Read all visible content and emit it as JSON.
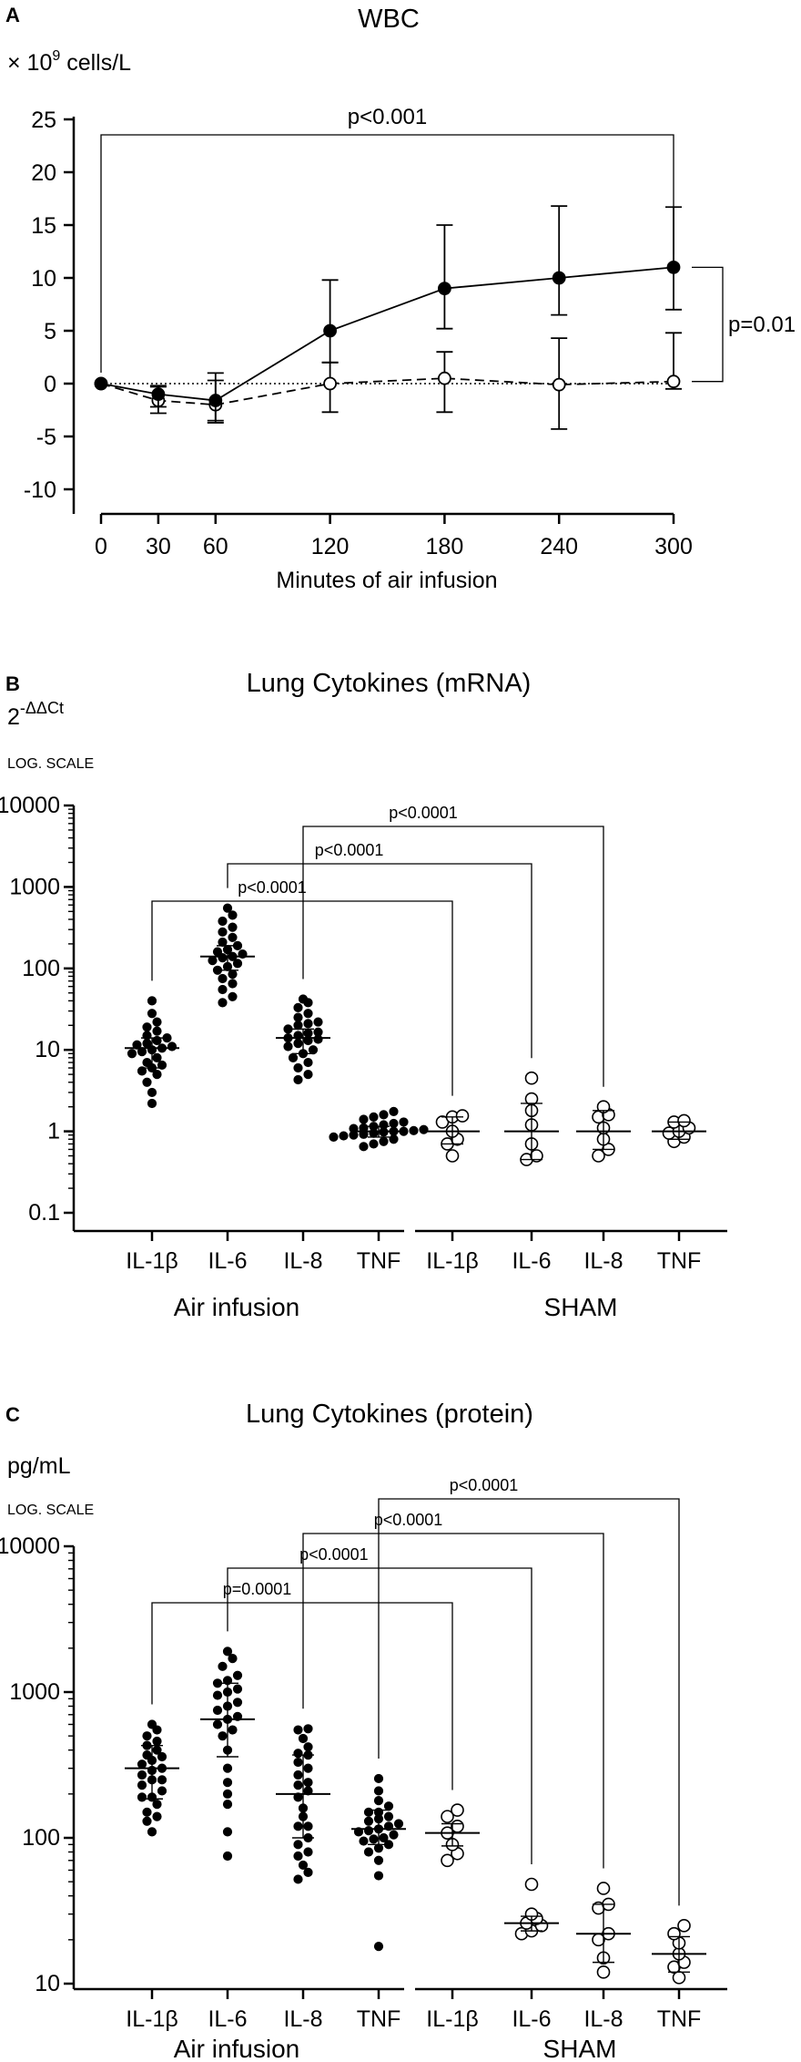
{
  "panels": {
    "A": {
      "letter": "A",
      "title": "WBC",
      "ylabel_prefix": "× 10",
      "ylabel_exp": "9",
      "ylabel_suffix": " cells/L",
      "xlabel": "Minutes of air infusion",
      "bracket_top": "p<0.001",
      "bracket_right": "p=0.01"
    },
    "B": {
      "letter": "B",
      "title": "Lung Cytokines (mRNA)",
      "ylabel_base": "2",
      "ylabel_exp": "-ΔΔCt",
      "scale_note": "LOG. SCALE",
      "group_left": "Air infusion",
      "group_right": "SHAM",
      "brackets": [
        "p<0.0001",
        "p<0.0001",
        "p<0.0001"
      ]
    },
    "C": {
      "letter": "C",
      "title": "Lung Cytokines (protein)",
      "ylabel": "pg/mL",
      "scale_note": "LOG. SCALE",
      "group_left": "Air infusion",
      "group_right": "SHAM",
      "brackets": [
        "p=0.0001",
        "p<0.0001",
        "p<0.0001",
        "p<0.0001"
      ]
    }
  },
  "chart_data": [
    {
      "type": "line",
      "title": "WBC",
      "xlabel": "Minutes of air infusion",
      "ylabel": "× 10^9 cells/L",
      "x": [
        0,
        30,
        60,
        120,
        180,
        240,
        300
      ],
      "x_ticks": [
        "0",
        "30",
        "60",
        "120",
        "180",
        "240",
        "300"
      ],
      "y_ticks": [
        "25",
        "20",
        "15",
        "10",
        "5",
        "0",
        "-5",
        "-10"
      ],
      "ylim": [
        -10,
        25
      ],
      "reference_line": 0,
      "series": [
        {
          "style": "solid line, filled circles",
          "values": [
            0,
            -1,
            -1.6,
            5,
            9,
            10,
            11
          ],
          "err_low": [
            0,
            -2.2,
            -3.5,
            2,
            5.2,
            6.5,
            7
          ],
          "err_high": [
            0,
            -0.2,
            0.3,
            9.8,
            15,
            16.8,
            16.7
          ]
        },
        {
          "style": "dashed line, open circles",
          "values": [
            0,
            -1.6,
            -2,
            0,
            0.5,
            -0.1,
            0.2
          ],
          "err_low": [
            0,
            -2.8,
            -3.7,
            -2.7,
            -2.7,
            -4.3,
            -0.5
          ],
          "err_high": [
            0,
            -0.3,
            1,
            2,
            3,
            4.3,
            4.8
          ]
        }
      ],
      "annotations": [
        "p<0.001",
        "p=0.01"
      ]
    },
    {
      "type": "scatter",
      "title": "Lung Cytokines (mRNA)",
      "ylabel": "2^-ΔΔCt",
      "log_scale": true,
      "ylim": [
        0.1,
        10000
      ],
      "y_ticks": [
        "10000",
        "1000",
        "100",
        "10",
        "1",
        "0.1"
      ],
      "categories": [
        "IL-1β",
        "IL-6",
        "IL-8",
        "TNF",
        "IL-1β",
        "IL-6",
        "IL-8",
        "TNF"
      ],
      "groups": [
        "Air infusion",
        "Air infusion",
        "Air infusion",
        "Air infusion",
        "SHAM",
        "SHAM",
        "SHAM",
        "SHAM"
      ],
      "medians": [
        10.5,
        140,
        14,
        1.0,
        1.0,
        1.0,
        1.0,
        1.0
      ],
      "ranges": [
        [
          6,
          14
        ],
        [
          95,
          190
        ],
        [
          9,
          18
        ],
        [
          0.85,
          1.15
        ],
        [
          0.7,
          1.5
        ],
        [
          0.45,
          2.2
        ],
        [
          0.6,
          1.8
        ],
        [
          0.8,
          1.3
        ]
      ],
      "points": [
        [
          2.2,
          3,
          4,
          5,
          5.5,
          6,
          6.5,
          7,
          8,
          9,
          9.5,
          10,
          10.5,
          11,
          11.5,
          12,
          13,
          14,
          15,
          17,
          19,
          22,
          28,
          40
        ],
        [
          38,
          45,
          55,
          65,
          75,
          85,
          95,
          105,
          115,
          125,
          135,
          140,
          150,
          160,
          170,
          190,
          210,
          240,
          280,
          320,
          380,
          450,
          550
        ],
        [
          4.3,
          5,
          6,
          7,
          8,
          9,
          10,
          11,
          12,
          13,
          14,
          15,
          16,
          18,
          20,
          22,
          25,
          28,
          33,
          38,
          42,
          16.5,
          21,
          13.5
        ],
        [
          0.65,
          0.7,
          0.75,
          0.8,
          0.85,
          0.9,
          0.92,
          0.95,
          0.98,
          1.0,
          1.02,
          1.05,
          1.1,
          1.15,
          1.2,
          1.25,
          1.3,
          1.4,
          1.5,
          1.6,
          1.75,
          0.88,
          1.0,
          1.08
        ],
        [
          0.5,
          0.7,
          0.8,
          1.0,
          1.3,
          1.5,
          1.55
        ],
        [
          0.45,
          0.5,
          0.7,
          1.2,
          1.8,
          2.5,
          4.5
        ],
        [
          0.5,
          0.6,
          0.8,
          1.1,
          1.5,
          1.6,
          2.0
        ],
        [
          0.75,
          0.85,
          0.95,
          1.0,
          1.1,
          1.3,
          1.35
        ]
      ],
      "comparisons": [
        {
          "from": 0,
          "to": 4,
          "label": "p<0.0001"
        },
        {
          "from": 1,
          "to": 5,
          "label": "p<0.0001"
        },
        {
          "from": 2,
          "to": 6,
          "label": "p<0.0001"
        }
      ]
    },
    {
      "type": "scatter",
      "title": "Lung Cytokines (protein)",
      "ylabel": "pg/mL",
      "log_scale": true,
      "ylim": [
        10,
        10000
      ],
      "y_ticks": [
        "10000",
        "1000",
        "100",
        "10"
      ],
      "categories": [
        "IL-1β",
        "IL-6",
        "IL-8",
        "TNF",
        "IL-1β",
        "IL-6",
        "IL-8",
        "TNF"
      ],
      "groups": [
        "Air infusion",
        "Air infusion",
        "Air infusion",
        "Air infusion",
        "SHAM",
        "SHAM",
        "SHAM",
        "SHAM"
      ],
      "medians": [
        300,
        650,
        200,
        115,
        108,
        26,
        22,
        16
      ],
      "ranges": [
        [
          185,
          430
        ],
        [
          360,
          1150
        ],
        [
          100,
          370
        ],
        [
          90,
          155
        ],
        [
          88,
          125
        ],
        [
          23,
          29
        ],
        [
          14,
          35
        ],
        [
          12,
          21
        ]
      ],
      "points": [
        [
          110,
          130,
          150,
          170,
          190,
          210,
          230,
          250,
          270,
          290,
          300,
          320,
          340,
          370,
          400,
          430,
          460,
          500,
          550,
          600,
          250,
          360,
          190,
          140
        ],
        [
          75,
          110,
          170,
          240,
          300,
          400,
          500,
          600,
          680,
          750,
          850,
          950,
          1050,
          1150,
          1300,
          1500,
          1700,
          1900,
          1200,
          800,
          550,
          200,
          650,
          1000
        ],
        [
          52,
          58,
          65,
          75,
          90,
          100,
          120,
          140,
          160,
          190,
          210,
          240,
          270,
          300,
          330,
          380,
          420,
          480,
          550,
          560,
          80,
          230,
          370,
          120
        ],
        [
          18,
          55,
          70,
          80,
          90,
          95,
          100,
          105,
          110,
          115,
          120,
          125,
          130,
          140,
          150,
          165,
          180,
          210,
          255,
          112,
          85,
          135,
          98,
          150
        ],
        [
          70,
          78,
          90,
          108,
          120,
          140,
          155
        ],
        [
          22,
          23,
          25,
          26,
          28,
          30,
          48
        ],
        [
          12,
          15,
          20,
          22,
          33,
          35,
          45
        ],
        [
          11,
          13,
          14,
          16,
          19,
          22,
          25
        ]
      ],
      "comparisons": [
        {
          "from": 0,
          "to": 4,
          "label": "p=0.0001"
        },
        {
          "from": 1,
          "to": 5,
          "label": "p<0.0001"
        },
        {
          "from": 2,
          "to": 6,
          "label": "p<0.0001"
        },
        {
          "from": 3,
          "to": 7,
          "label": "p<0.0001"
        }
      ]
    }
  ]
}
